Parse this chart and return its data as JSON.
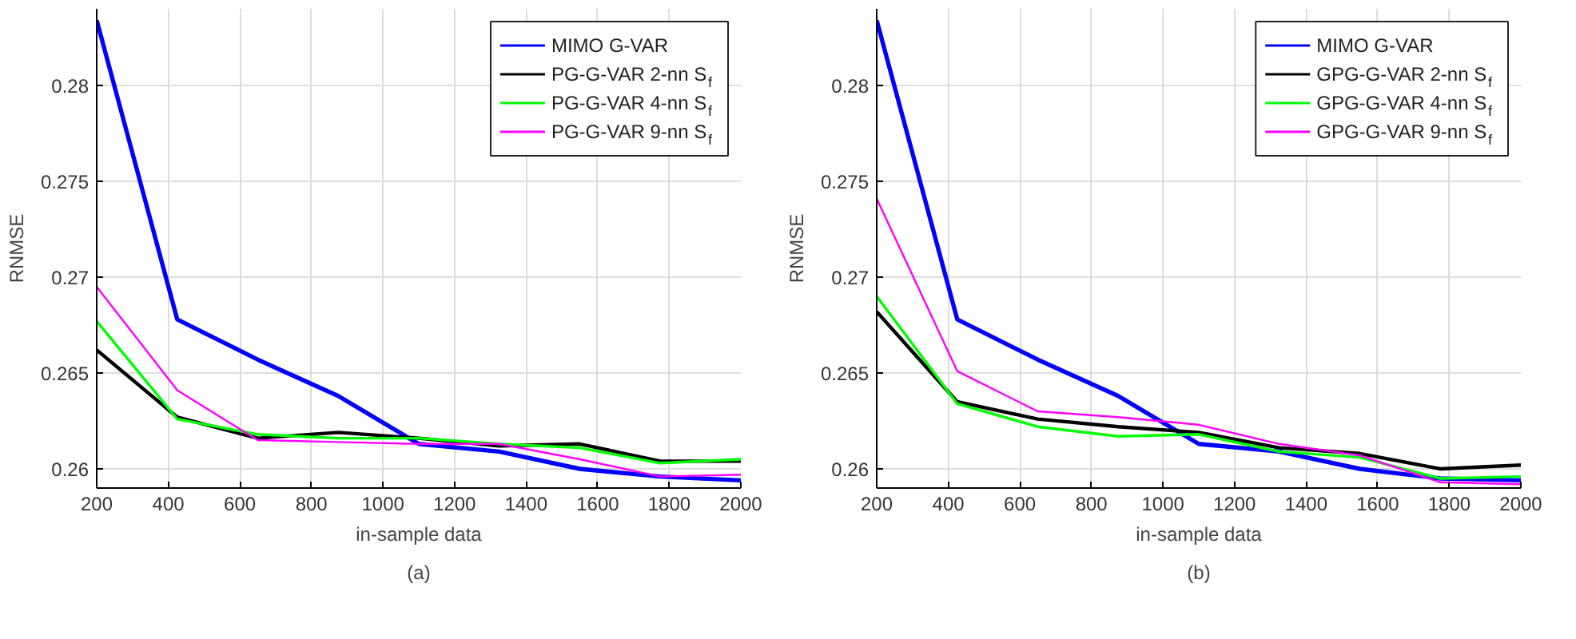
{
  "chart_data": [
    {
      "type": "line",
      "xlabel": "in-sample data",
      "ylabel": "RNMSE",
      "annotations": [
        "(a)"
      ],
      "x": [
        200,
        425,
        650,
        875,
        1100,
        1325,
        1550,
        1775,
        2000
      ],
      "xlim": [
        200,
        2000
      ],
      "ylim": [
        0.259,
        0.284
      ],
      "xticks": [
        200,
        400,
        600,
        800,
        1000,
        1200,
        1400,
        1600,
        1800,
        2000
      ],
      "yticks": [
        0.26,
        0.265,
        0.27,
        0.275,
        0.28
      ],
      "grid": true,
      "legend": "top right",
      "series": [
        {
          "name": "MIMO G-VAR",
          "color": "#0000ff",
          "values": [
            0.2834,
            0.2678,
            0.2657,
            0.2638,
            0.2613,
            0.2609,
            0.26,
            0.2596,
            0.2594
          ]
        },
        {
          "name": "PG-G-VAR 2-nn S$_{f}$",
          "color": "#000000",
          "values": [
            0.2662,
            0.2627,
            0.2616,
            0.2619,
            0.2616,
            0.2612,
            0.2613,
            0.2604,
            0.2604
          ]
        },
        {
          "name": "PG-G-VAR 4-nn S$_{f}$",
          "color": "#00ff00",
          "values": [
            0.2677,
            0.2626,
            0.2618,
            0.2616,
            0.2616,
            0.2613,
            0.2611,
            0.2603,
            0.2605
          ]
        },
        {
          "name": "PG-G-VAR 9-nn S$_{f}$",
          "color": "#ff00ff",
          "values": [
            0.2695,
            0.2641,
            0.2615,
            0.2614,
            0.2613,
            0.2613,
            0.2605,
            0.2596,
            0.2597
          ]
        }
      ]
    },
    {
      "type": "line",
      "xlabel": "in-sample data",
      "ylabel": "RNMSE",
      "annotations": [
        "(b)"
      ],
      "x": [
        200,
        425,
        650,
        875,
        1100,
        1325,
        1550,
        1775,
        2000
      ],
      "xlim": [
        200,
        2000
      ],
      "ylim": [
        0.259,
        0.284
      ],
      "xticks": [
        200,
        400,
        600,
        800,
        1000,
        1200,
        1400,
        1600,
        1800,
        2000
      ],
      "yticks": [
        0.26,
        0.265,
        0.27,
        0.275,
        0.28
      ],
      "grid": true,
      "legend": "top right",
      "series": [
        {
          "name": "MIMO G-VAR",
          "color": "#0000ff",
          "values": [
            0.2834,
            0.2678,
            0.2657,
            0.2638,
            0.2613,
            0.2609,
            0.26,
            0.2595,
            0.2594
          ]
        },
        {
          "name": "GPG-G-VAR 2-nn S$_{f}$",
          "color": "#000000",
          "values": [
            0.2682,
            0.2635,
            0.2626,
            0.2622,
            0.2619,
            0.2611,
            0.2608,
            0.26,
            0.2602
          ]
        },
        {
          "name": "GPG-G-VAR 4-nn S$_{f}$",
          "color": "#00ff00",
          "values": [
            0.269,
            0.2634,
            0.2622,
            0.2617,
            0.2618,
            0.2609,
            0.2606,
            0.2595,
            0.2596
          ]
        },
        {
          "name": "GPG-G-VAR 9-nn S$_{f}$",
          "color": "#ff00ff",
          "values": [
            0.2741,
            0.2651,
            0.263,
            0.2627,
            0.2623,
            0.2613,
            0.2607,
            0.2593,
            0.2592
          ]
        }
      ]
    }
  ]
}
